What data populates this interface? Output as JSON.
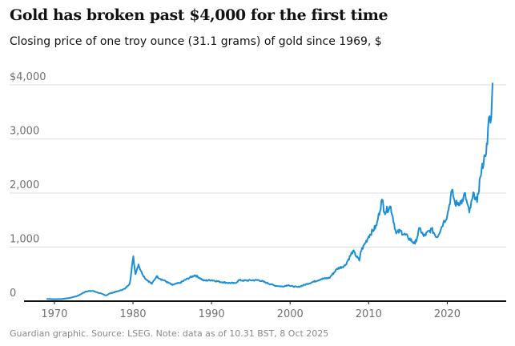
{
  "chart_data": {
    "type": "line",
    "title": "Gold has broken past $4,000 for the first time",
    "subtitle": "Closing price of one troy ounce (31.1 grams) of gold since 1969, $",
    "footer": "Guardian graphic. Source: LSEG. Note: data as of 10.31 BST, 8 Oct 2025",
    "xlabel": "",
    "ylabel": "",
    "xlim": [
      1964.3,
      2027.5
    ],
    "ylim": [
      0,
      4000
    ],
    "yticks": [
      {
        "v": 0,
        "label": "0"
      },
      {
        "v": 1000,
        "label": "1,000"
      },
      {
        "v": 2000,
        "label": "2,000"
      },
      {
        "v": 3000,
        "label": "3,000"
      },
      {
        "v": 4000,
        "label": "$4,000"
      }
    ],
    "xticks": [
      {
        "v": 1970,
        "label": "1970"
      },
      {
        "v": 1980,
        "label": "1980"
      },
      {
        "v": 1990,
        "label": "1990"
      },
      {
        "v": 2000,
        "label": "2000"
      },
      {
        "v": 2010,
        "label": "2010"
      },
      {
        "v": 2020,
        "label": "2020"
      }
    ],
    "color": "#1a8fd6",
    "series": [
      {
        "name": "Gold",
        "points": [
          [
            1969,
            42
          ],
          [
            1970,
            36
          ],
          [
            1971,
            40
          ],
          [
            1972,
            60
          ],
          [
            1973,
            100
          ],
          [
            1974,
            180
          ],
          [
            1974.9,
            190
          ],
          [
            1975.5,
            160
          ],
          [
            1976.6,
            105
          ],
          [
            1977,
            140
          ],
          [
            1978,
            180
          ],
          [
            1979,
            230
          ],
          [
            1979.6,
            330
          ],
          [
            1980.05,
            830
          ],
          [
            1980.3,
            500
          ],
          [
            1980.7,
            680
          ],
          [
            1981,
            560
          ],
          [
            1981.5,
            430
          ],
          [
            1982.4,
            320
          ],
          [
            1983,
            460
          ],
          [
            1983.5,
            410
          ],
          [
            1984,
            380
          ],
          [
            1985,
            300
          ],
          [
            1986,
            340
          ],
          [
            1987,
            420
          ],
          [
            1987.9,
            480
          ],
          [
            1988.5,
            430
          ],
          [
            1989,
            380
          ],
          [
            1990,
            390
          ],
          [
            1991,
            360
          ],
          [
            1992,
            340
          ],
          [
            1993,
            330
          ],
          [
            1993.5,
            390
          ],
          [
            1994,
            380
          ],
          [
            1995,
            385
          ],
          [
            1996,
            390
          ],
          [
            1997,
            340
          ],
          [
            1998,
            290
          ],
          [
            1999,
            270
          ],
          [
            1999.8,
            300
          ],
          [
            2000,
            280
          ],
          [
            2001,
            260
          ],
          [
            2002,
            310
          ],
          [
            2003,
            360
          ],
          [
            2004,
            410
          ],
          [
            2005,
            430
          ],
          [
            2006,
            600
          ],
          [
            2007,
            660
          ],
          [
            2008,
            930
          ],
          [
            2008.8,
            750
          ],
          [
            2009,
            920
          ],
          [
            2010,
            1200
          ],
          [
            2011,
            1400
          ],
          [
            2011.7,
            1880
          ],
          [
            2012,
            1650
          ],
          [
            2012.8,
            1750
          ],
          [
            2013.5,
            1250
          ],
          [
            2014,
            1300
          ],
          [
            2015,
            1180
          ],
          [
            2015.9,
            1060
          ],
          [
            2016.5,
            1350
          ],
          [
            2017,
            1200
          ],
          [
            2018,
            1330
          ],
          [
            2018.7,
            1180
          ],
          [
            2019.5,
            1450
          ],
          [
            2020,
            1580
          ],
          [
            2020.6,
            2050
          ],
          [
            2021,
            1800
          ],
          [
            2022,
            1850
          ],
          [
            2022.2,
            2000
          ],
          [
            2022.8,
            1640
          ],
          [
            2023.4,
            2000
          ],
          [
            2023.8,
            1830
          ],
          [
            2024.2,
            2300
          ],
          [
            2024.8,
            2700
          ],
          [
            2025.1,
            2900
          ],
          [
            2025.3,
            3400
          ],
          [
            2025.5,
            3300
          ],
          [
            2025.6,
            3400
          ],
          [
            2025.77,
            4040
          ]
        ]
      }
    ]
  }
}
